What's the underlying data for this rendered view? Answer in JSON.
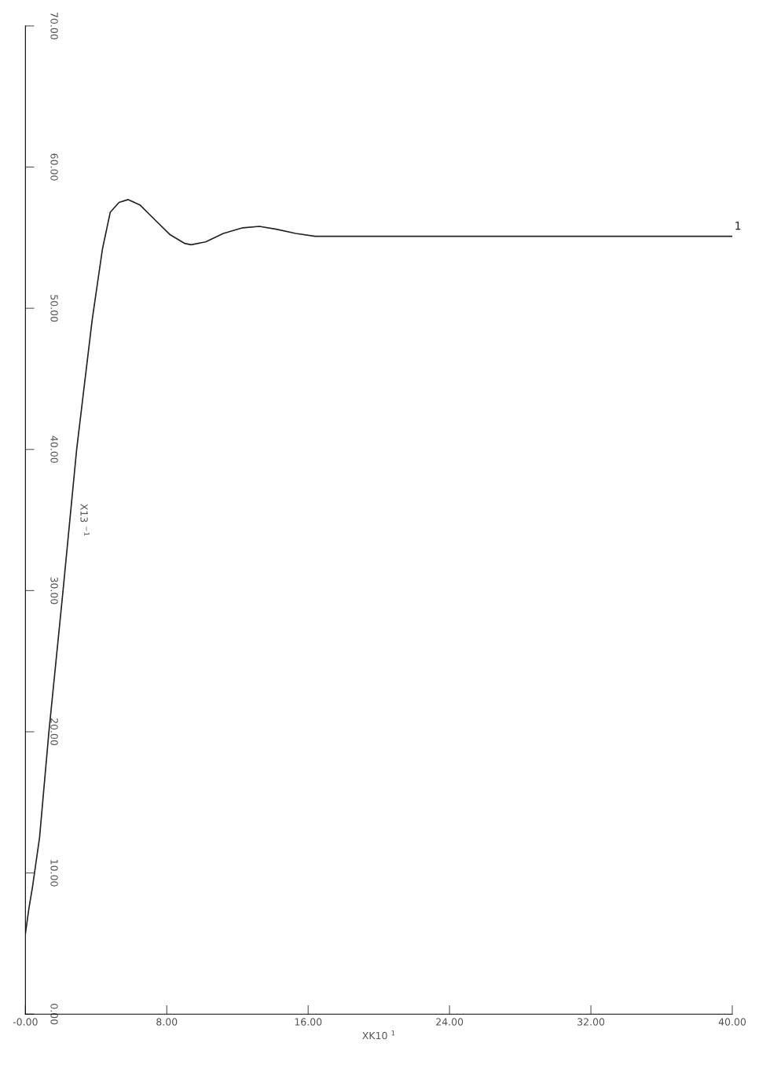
{
  "chart_data": {
    "type": "line",
    "xlabel": "XK10 $^{1}$",
    "ylabel": "X13 $^{−1}$",
    "x": [
      0,
      0.2,
      0.4,
      0.8,
      1.33,
      2.13,
      2.9,
      3.78,
      4.36,
      4.8,
      5.3,
      5.82,
      6.5,
      7.3,
      8.2,
      9.0,
      9.38,
      10.2,
      11.2,
      12.3,
      13.24,
      14.2,
      15.3,
      16.4,
      17.5,
      20,
      25,
      30,
      35,
      40
    ],
    "series": [
      {
        "name": "1",
        "color": "#222222",
        "values": [
          5.7,
          7.5,
          9.0,
          12.5,
          20,
          30,
          40,
          49.2,
          54.2,
          56.8,
          57.5,
          57.7,
          57.3,
          56.3,
          55.2,
          54.6,
          54.5,
          54.7,
          55.3,
          55.7,
          55.8,
          55.6,
          55.3,
          55.1,
          55.1,
          55.1,
          55.1,
          55.1,
          55.1,
          55.1
        ]
      }
    ],
    "xlim": [
      0,
      40
    ],
    "ylim": [
      0,
      70
    ],
    "xticks": [
      {
        "value": 0,
        "label": "-0.00"
      },
      {
        "value": 8,
        "label": "8.00"
      },
      {
        "value": 16,
        "label": "16.00"
      },
      {
        "value": 24,
        "label": "24.00"
      },
      {
        "value": 32,
        "label": "32.00"
      },
      {
        "value": 40,
        "label": "40.00"
      }
    ],
    "yticks": [
      {
        "value": 0,
        "label": "0.00"
      },
      {
        "value": 10,
        "label": "10.00"
      },
      {
        "value": 20,
        "label": "20.00"
      },
      {
        "value": 30,
        "label": "30.00"
      },
      {
        "value": 40,
        "label": "40.00"
      },
      {
        "value": 50,
        "label": "50.00"
      },
      {
        "value": 60,
        "label": "60.00"
      },
      {
        "value": 70,
        "label": "70.00"
      }
    ],
    "grid": false,
    "legend": false
  }
}
